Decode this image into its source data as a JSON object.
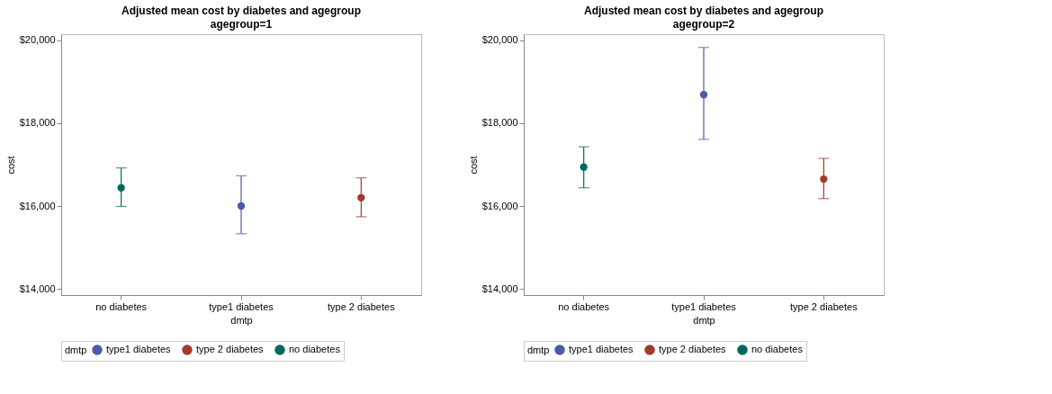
{
  "chart_data": [
    {
      "type": "scatter",
      "title": "Adjusted mean cost by diabetes and agegroup",
      "subtitle": "agegroup=1",
      "xlabel": "dmtp",
      "ylabel": "cost",
      "legend_title": "dmtp",
      "categories": [
        "no diabetes",
        "type1 diabetes",
        "type 2 diabetes"
      ],
      "series": [
        {
          "name": "type1 diabetes",
          "color": "#4b5ba6",
          "values": [
            null,
            16000,
            null
          ],
          "errors": [
            null,
            [
              15330,
              16730
            ],
            null
          ]
        },
        {
          "name": "type 2 diabetes",
          "color": "#a3392b",
          "values": [
            null,
            null,
            16200
          ],
          "errors": [
            null,
            null,
            [
              15740,
              16680
            ]
          ]
        },
        {
          "name": "no diabetes",
          "color": "#00695c",
          "values": [
            16440,
            null,
            null
          ],
          "errors": [
            [
              15990,
              16920
            ],
            null,
            null
          ]
        }
      ],
      "ylim": [
        13850,
        20150
      ],
      "yticks": [
        {
          "value": 14000,
          "label": "$14,000"
        },
        {
          "value": 16000,
          "label": "$16,000"
        },
        {
          "value": 18000,
          "label": "$18,000"
        },
        {
          "value": 20000,
          "label": "$20,000"
        }
      ],
      "grid": false,
      "legend": "bottom",
      "marker": "circle"
    },
    {
      "type": "scatter",
      "title": "Adjusted mean cost by diabetes and agegroup",
      "subtitle": "agegroup=2",
      "xlabel": "dmtp",
      "ylabel": "cost",
      "legend_title": "dmtp",
      "categories": [
        "no diabetes",
        "type1 diabetes",
        "type 2 diabetes"
      ],
      "series": [
        {
          "name": "type1 diabetes",
          "color": "#4b5ba6",
          "values": [
            null,
            18690,
            null
          ],
          "errors": [
            null,
            [
              17610,
              19830
            ],
            null
          ]
        },
        {
          "name": "type 2 diabetes",
          "color": "#a3392b",
          "values": [
            null,
            null,
            16650
          ],
          "errors": [
            null,
            null,
            [
              16180,
              17150
            ]
          ]
        },
        {
          "name": "no diabetes",
          "color": "#00695c",
          "values": [
            16940,
            null,
            null
          ],
          "errors": [
            [
              16440,
              17430
            ],
            null,
            null
          ]
        }
      ],
      "ylim": [
        13850,
        20150
      ],
      "yticks": [
        {
          "value": 14000,
          "label": "$14,000"
        },
        {
          "value": 16000,
          "label": "$16,000"
        },
        {
          "value": 18000,
          "label": "$18,000"
        },
        {
          "value": 20000,
          "label": "$20,000"
        }
      ],
      "grid": false,
      "legend": "bottom",
      "marker": "circle"
    }
  ]
}
